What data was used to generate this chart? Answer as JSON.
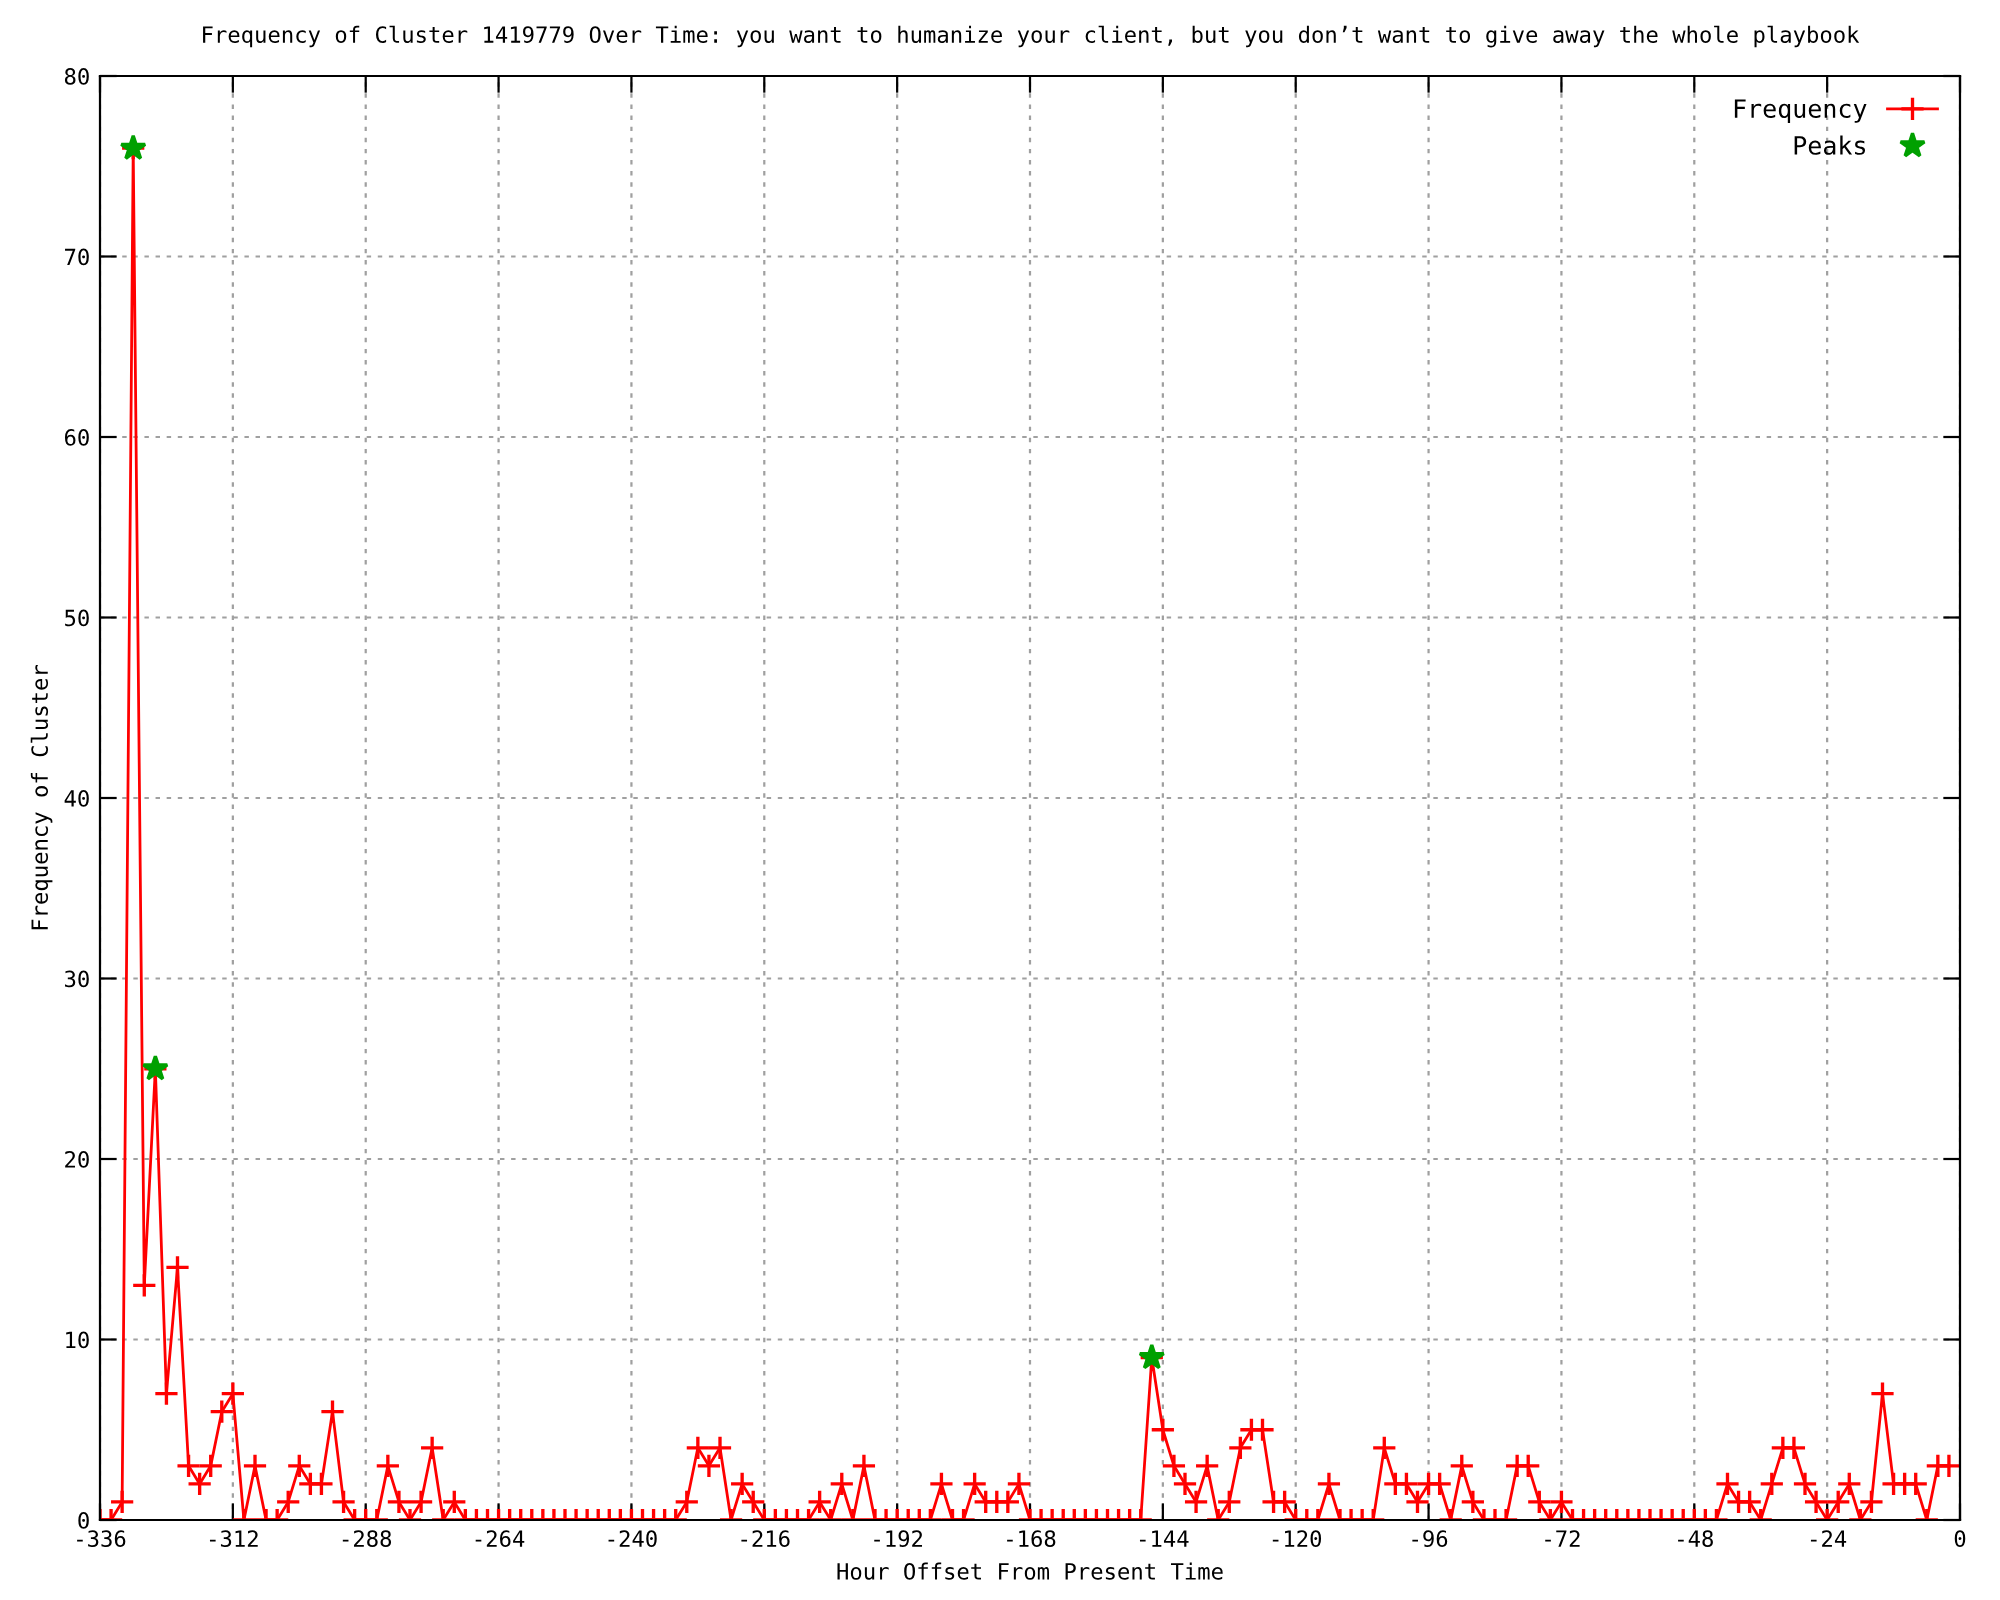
{
  "chart_data": {
    "type": "line",
    "title": "Frequency of Cluster 1419779 Over Time: you want to humanize your client, but you don’t want to give away the whole playbook",
    "xlabel": "Hour Offset From Present Time",
    "ylabel": "Frequency of Cluster",
    "xlim": [
      -336,
      0
    ],
    "xticks": [
      -336,
      -312,
      -288,
      -264,
      -240,
      -216,
      -192,
      -168,
      -144,
      -120,
      -96,
      -72,
      -48,
      -24,
      0
    ],
    "ylim": [
      0,
      80
    ],
    "yticks": [
      0,
      10,
      20,
      30,
      40,
      50,
      60,
      70,
      80
    ],
    "grid": true,
    "legend": "top right",
    "series": [
      {
        "name": "Frequency",
        "color": "#ff0000",
        "marker": "cross",
        "line_style": "solid",
        "x": [
          -336,
          -334,
          -332,
          -330,
          -328,
          -326,
          -324,
          -322,
          -320,
          -318,
          -316,
          -314,
          -312,
          -310,
          -308,
          -306,
          -304,
          -302,
          -300,
          -298,
          -296,
          -294,
          -292,
          -290,
          -288,
          -286,
          -284,
          -282,
          -280,
          -278,
          -276,
          -274,
          -272,
          -270,
          -268,
          -266,
          -264,
          -262,
          -260,
          -258,
          -256,
          -254,
          -252,
          -250,
          -248,
          -246,
          -244,
          -242,
          -240,
          -238,
          -236,
          -234,
          -232,
          -230,
          -228,
          -226,
          -224,
          -222,
          -220,
          -218,
          -216,
          -214,
          -212,
          -210,
          -208,
          -206,
          -204,
          -202,
          -200,
          -198,
          -196,
          -194,
          -192,
          -190,
          -188,
          -186,
          -184,
          -182,
          -180,
          -178,
          -176,
          -174,
          -172,
          -170,
          -168,
          -166,
          -164,
          -162,
          -160,
          -158,
          -156,
          -154,
          -152,
          -150,
          -148,
          -146,
          -144,
          -142,
          -140,
          -138,
          -136,
          -134,
          -132,
          -130,
          -128,
          -126,
          -124,
          -122,
          -120,
          -118,
          -116,
          -114,
          -112,
          -110,
          -108,
          -106,
          -104,
          -102,
          -100,
          -98,
          -96,
          -94,
          -92,
          -90,
          -88,
          -86,
          -84,
          -82,
          -80,
          -78,
          -76,
          -74,
          -72,
          -70,
          -68,
          -66,
          -64,
          -62,
          -60,
          -58,
          -56,
          -54,
          -52,
          -50,
          -48,
          -46,
          -44,
          -42,
          -40,
          -38,
          -36,
          -34,
          -32,
          -30,
          -28,
          -26,
          -24,
          -22,
          -20,
          -18,
          -16,
          -14,
          -12,
          -10,
          -8,
          -6,
          -4,
          -2
        ],
        "values": [
          0,
          0,
          1,
          76,
          13,
          25,
          7,
          14,
          3,
          2,
          3,
          6,
          7,
          0,
          3,
          0,
          0,
          1,
          3,
          2,
          2,
          6,
          1,
          0,
          0,
          0,
          3,
          1,
          0,
          1,
          4,
          0,
          1,
          0,
          0,
          0,
          0,
          0,
          0,
          0,
          0,
          0,
          0,
          0,
          0,
          0,
          0,
          0,
          0,
          0,
          0,
          0,
          0,
          1,
          4,
          3,
          4,
          0,
          2,
          1,
          0,
          0,
          0,
          0,
          0,
          1,
          0,
          2,
          0,
          3,
          0,
          0,
          0,
          0,
          0,
          0,
          2,
          0,
          0,
          2,
          1,
          1,
          1,
          2,
          0,
          0,
          0,
          0,
          0,
          0,
          0,
          0,
          0,
          0,
          0,
          9,
          5,
          3,
          2,
          1,
          3,
          0,
          1,
          4,
          5,
          5,
          1,
          1,
          0,
          0,
          0,
          2,
          0,
          0,
          0,
          0,
          4,
          2,
          2,
          1,
          2,
          2,
          0,
          3,
          1,
          0,
          0,
          0,
          3,
          3,
          1,
          0,
          1,
          0,
          0,
          0,
          0,
          0,
          0,
          0,
          0,
          0,
          0,
          0,
          0,
          0,
          0,
          2,
          1,
          1,
          0,
          2,
          4,
          4,
          2,
          1,
          0,
          1,
          2,
          0,
          1,
          7,
          2,
          2,
          2,
          0,
          3,
          3
        ]
      },
      {
        "name": "Peaks",
        "type": "scatter",
        "color": "#00a000",
        "marker": "star",
        "x": [
          -330,
          -326,
          -146
        ],
        "values": [
          76,
          25,
          9
        ]
      }
    ]
  }
}
